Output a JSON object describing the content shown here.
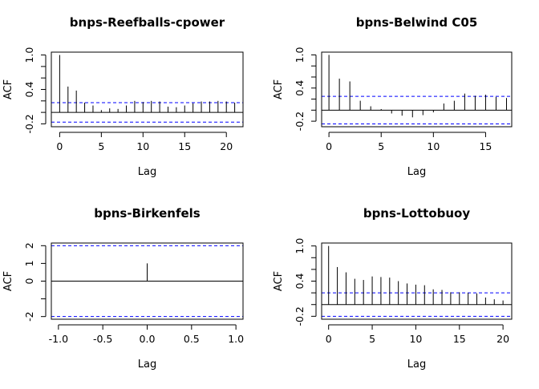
{
  "figure": {
    "background": "#ffffff",
    "line_color": "#000000",
    "ci_color": "#0000ff"
  },
  "chart_data": [
    {
      "type": "bar",
      "title": "bnps-Reefballs-cpower",
      "xlabel": "Lag",
      "ylabel": "ACF",
      "xlim": [
        -1,
        22
      ],
      "ylim": [
        -0.25,
        1.05
      ],
      "x_ticks": [
        "0",
        "5",
        "10",
        "15",
        "20"
      ],
      "y_ticks": [
        "-0.2",
        "0.4",
        "1.0"
      ],
      "ci": 0.17,
      "lags": [
        0,
        1,
        2,
        3,
        4,
        5,
        6,
        7,
        8,
        9,
        10,
        11,
        12,
        13,
        14,
        15,
        16,
        17,
        18,
        19,
        20,
        21
      ],
      "values": [
        1.0,
        0.45,
        0.38,
        0.17,
        0.12,
        0.04,
        0.07,
        0.06,
        0.12,
        0.2,
        0.18,
        0.2,
        0.19,
        0.1,
        0.09,
        0.12,
        0.16,
        0.19,
        0.19,
        0.2,
        0.19,
        0.17
      ]
    },
    {
      "type": "bar",
      "title": "bpns-Belwind C05",
      "xlabel": "Lag",
      "ylabel": "ACF",
      "xlim": [
        -0.7,
        17.5
      ],
      "ylim": [
        -0.3,
        1.05
      ],
      "x_ticks": [
        "0",
        "5",
        "10",
        "15"
      ],
      "y_ticks": [
        "-0.2",
        "0.4",
        "1.0"
      ],
      "ci": 0.25,
      "lags": [
        0,
        1,
        2,
        3,
        4,
        5,
        6,
        7,
        8,
        9,
        10,
        11,
        12,
        13,
        14,
        15,
        16,
        17
      ],
      "values": [
        1.0,
        0.57,
        0.52,
        0.17,
        0.07,
        0.02,
        -0.06,
        -0.1,
        -0.13,
        -0.09,
        -0.04,
        0.12,
        0.17,
        0.3,
        0.26,
        0.28,
        0.24,
        0.22
      ]
    },
    {
      "type": "bar",
      "title": "bpns-Birkenfels",
      "xlabel": "Lag",
      "ylabel": "ACF",
      "xlim": [
        -1.08,
        1.08
      ],
      "ylim": [
        -2.15,
        2.15
      ],
      "x_ticks": [
        "-1.0",
        "-0.5",
        "0.0",
        "0.5",
        "1.0"
      ],
      "y_ticks": [
        "-2",
        "0",
        "1",
        "2"
      ],
      "ci": 2.0,
      "lags": [
        0
      ],
      "values": [
        1.0
      ]
    },
    {
      "type": "bar",
      "title": "bpns-Lottobuoy",
      "xlabel": "Lag",
      "ylabel": "ACF",
      "xlim": [
        -0.8,
        21.0
      ],
      "ylim": [
        -0.25,
        1.05
      ],
      "x_ticks": [
        "0",
        "5",
        "10",
        "15",
        "20"
      ],
      "y_ticks": [
        "-0.2",
        "0.4",
        "1.0"
      ],
      "ci": 0.2,
      "lags": [
        0,
        1,
        2,
        3,
        4,
        5,
        6,
        7,
        8,
        9,
        10,
        11,
        12,
        13,
        14,
        15,
        16,
        17,
        18,
        19,
        20
      ],
      "values": [
        1.0,
        0.64,
        0.55,
        0.44,
        0.42,
        0.48,
        0.47,
        0.46,
        0.4,
        0.36,
        0.34,
        0.33,
        0.26,
        0.25,
        0.21,
        0.21,
        0.2,
        0.19,
        0.12,
        0.09,
        0.07
      ]
    }
  ]
}
